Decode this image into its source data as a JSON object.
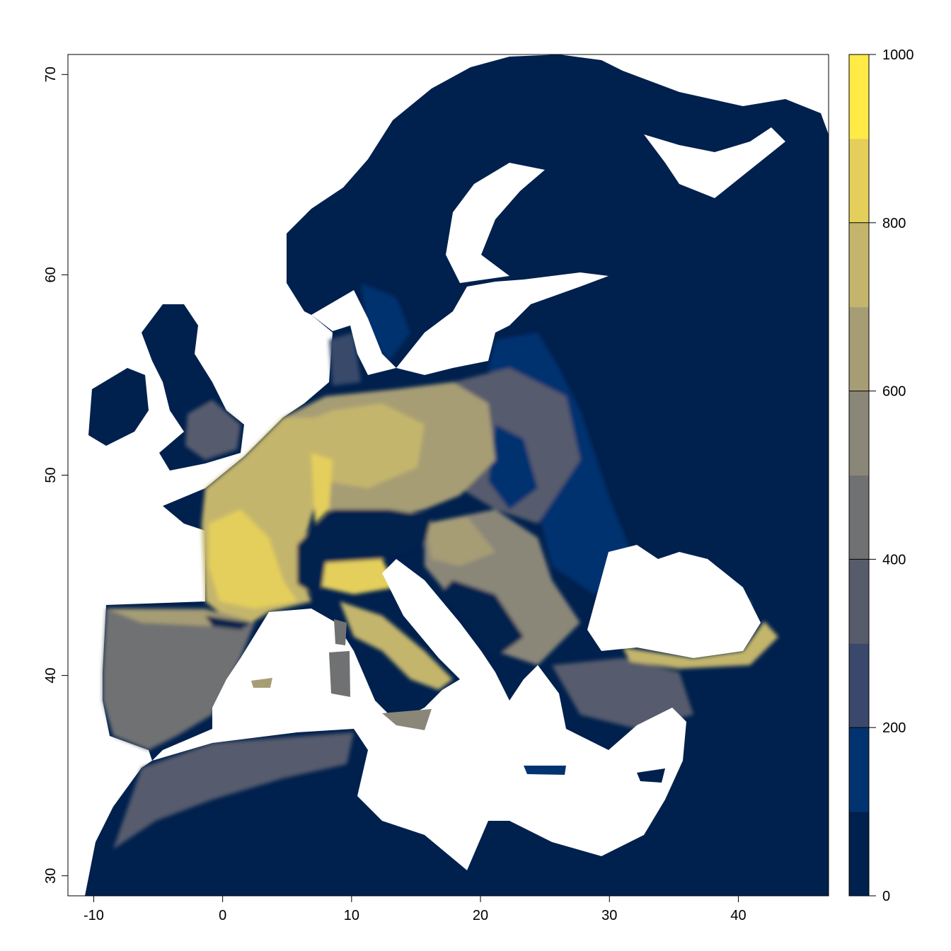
{
  "map": {
    "x_axis": {
      "range": [
        -12,
        47
      ],
      "ticks": [
        -10,
        0,
        10,
        20,
        30,
        40
      ],
      "labels": [
        "-10",
        "0",
        "10",
        "20",
        "30",
        "40"
      ]
    },
    "y_axis": {
      "range": [
        29,
        71
      ],
      "ticks": [
        30,
        40,
        50,
        60,
        70
      ],
      "labels": [
        "30",
        "40",
        "50",
        "60",
        "70"
      ]
    },
    "ocean_color": "#FFFFFF",
    "land_base_color": "#00204D"
  },
  "legend": {
    "range": [
      0,
      1000
    ],
    "breaks": [
      0,
      100,
      200,
      300,
      400,
      500,
      600,
      700,
      800,
      900,
      1000
    ],
    "colors": [
      "#00204D",
      "#00336F",
      "#39486B",
      "#575C6D",
      "#707173",
      "#8A8779",
      "#A69D75",
      "#C4B56C",
      "#E4CF5B",
      "#FFEA46"
    ],
    "ticks": [
      0,
      200,
      400,
      600,
      800,
      1000
    ],
    "labels": [
      "0",
      "200",
      "400",
      "600",
      "800",
      "1000"
    ]
  }
}
